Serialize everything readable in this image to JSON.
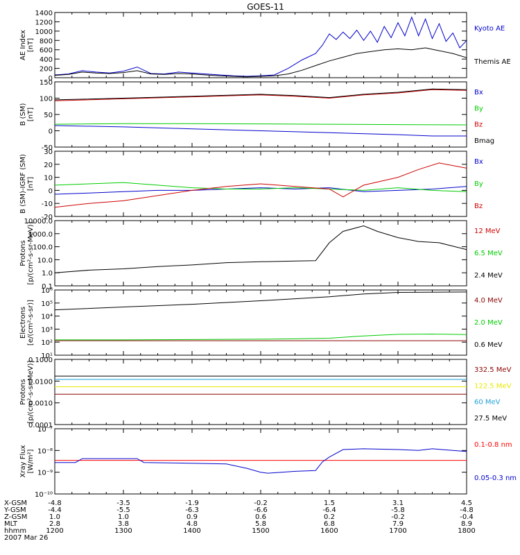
{
  "title": "GOES-11",
  "chart_data": [
    {
      "type": "line",
      "ylabel": [
        "AE Index",
        "[nT]"
      ],
      "ylim": [
        0,
        1400
      ],
      "yticks": [
        {
          "v": 0,
          "label": "0"
        },
        {
          "v": 200,
          "label": "200"
        },
        {
          "v": 400,
          "label": "400"
        },
        {
          "v": 600,
          "label": "600"
        },
        {
          "v": 800,
          "label": "800"
        },
        {
          "v": 1000,
          "label": "1000"
        },
        {
          "v": 1200,
          "label": "1200"
        },
        {
          "v": 1400,
          "label": "1400"
        }
      ],
      "series": [
        {
          "name": "Kyoto AE",
          "color": "#0000cc",
          "x": [
            12.0,
            12.2,
            12.4,
            12.6,
            12.8,
            13.0,
            13.2,
            13.4,
            13.6,
            13.8,
            14.0,
            14.2,
            14.4,
            14.6,
            14.8,
            15.0,
            15.2,
            15.4,
            15.6,
            15.8,
            15.9,
            16.0,
            16.1,
            16.2,
            16.3,
            16.4,
            16.5,
            16.6,
            16.7,
            16.8,
            16.9,
            17.0,
            17.1,
            17.2,
            17.3,
            17.4,
            17.5,
            17.6,
            17.7,
            17.8,
            17.9,
            18.0
          ],
          "y": [
            60,
            80,
            150,
            120,
            100,
            140,
            230,
            90,
            80,
            120,
            100,
            80,
            60,
            40,
            30,
            40,
            60,
            200,
            380,
            520,
            700,
            940,
            820,
            980,
            840,
            1020,
            800,
            1000,
            760,
            1100,
            860,
            1180,
            900,
            1300,
            900,
            1260,
            840,
            1160,
            780,
            960,
            640,
            800
          ]
        },
        {
          "name": "Themis AE",
          "color": "#000000",
          "x": [
            12.0,
            12.2,
            12.4,
            12.6,
            12.8,
            13.0,
            13.2,
            13.4,
            13.6,
            13.8,
            14.0,
            14.2,
            14.4,
            14.6,
            14.8,
            15.0,
            15.2,
            15.4,
            15.6,
            15.8,
            16.0,
            16.2,
            16.4,
            16.6,
            16.8,
            17.0,
            17.2,
            17.4,
            17.6,
            17.8,
            18.0
          ],
          "y": [
            50,
            70,
            120,
            100,
            90,
            110,
            150,
            80,
            70,
            90,
            80,
            60,
            40,
            30,
            20,
            30,
            40,
            80,
            160,
            260,
            360,
            440,
            520,
            560,
            600,
            620,
            600,
            640,
            580,
            520,
            430
          ]
        }
      ],
      "legend": [
        {
          "text": "Kyoto AE",
          "color": "#0000cc"
        },
        {
          "text": "Themis AE",
          "color": "#000000"
        }
      ]
    },
    {
      "type": "line",
      "ylabel": [
        "B (SM)",
        "[nT]"
      ],
      "ylim": [
        -50,
        150
      ],
      "yticks": [
        {
          "v": -50,
          "label": "-50"
        },
        {
          "v": 0,
          "label": "0"
        },
        {
          "v": 50,
          "label": "50"
        },
        {
          "v": 100,
          "label": "100"
        },
        {
          "v": 150,
          "label": "150"
        }
      ],
      "series": [
        {
          "name": "Bx",
          "color": "#0000cc",
          "x": [
            12,
            13,
            14,
            15,
            16,
            17,
            17.5,
            18
          ],
          "y": [
            16,
            12,
            6,
            0,
            -6,
            -12,
            -16,
            -16
          ]
        },
        {
          "name": "By",
          "color": "#00cc00",
          "x": [
            12,
            13,
            14,
            15,
            16,
            17,
            18
          ],
          "y": [
            20,
            22,
            22,
            21,
            20,
            19,
            18
          ]
        },
        {
          "name": "Bz",
          "color": "#cc0000",
          "x": [
            12,
            13,
            14,
            15,
            15.5,
            16,
            16.5,
            17,
            17.5,
            18
          ],
          "y": [
            92,
            98,
            104,
            110,
            106,
            100,
            110,
            116,
            126,
            124
          ]
        },
        {
          "name": "Bmag",
          "color": "#000000",
          "x": [
            12,
            13,
            14,
            15,
            15.5,
            16,
            16.5,
            17,
            17.5,
            18
          ],
          "y": [
            95,
            100,
            106,
            112,
            108,
            102,
            112,
            118,
            128,
            126
          ]
        }
      ],
      "legend": [
        {
          "text": "Bx",
          "color": "#0000cc"
        },
        {
          "text": "By",
          "color": "#00cc00"
        },
        {
          "text": "Bz",
          "color": "#cc0000"
        },
        {
          "text": "Bmag",
          "color": "#000000"
        }
      ]
    },
    {
      "type": "line",
      "ylabel": [
        "B (SM)-IGRF (SM)",
        "[nT]"
      ],
      "ylim": [
        -20,
        30
      ],
      "yticks": [
        {
          "v": -20,
          "label": "-20"
        },
        {
          "v": -10,
          "label": "-10"
        },
        {
          "v": 0,
          "label": "0"
        },
        {
          "v": 10,
          "label": "10"
        },
        {
          "v": 20,
          "label": "20"
        },
        {
          "v": 30,
          "label": "30"
        }
      ],
      "series": [
        {
          "name": "Bx",
          "color": "#0000cc",
          "x": [
            12,
            12.5,
            13,
            13.5,
            14,
            14.5,
            15,
            15.5,
            16,
            16.5,
            17,
            17.5,
            18
          ],
          "y": [
            -3,
            -2,
            -1,
            0,
            0,
            1,
            2,
            1,
            2,
            -1,
            0,
            1,
            3
          ]
        },
        {
          "name": "By",
          "color": "#00cc00",
          "x": [
            12,
            12.5,
            13,
            13.5,
            14,
            14.5,
            15,
            15.5,
            16,
            16.5,
            17,
            17.5,
            18
          ],
          "y": [
            4,
            5,
            6,
            4,
            2,
            1,
            1,
            2,
            1,
            0,
            2,
            0,
            -1
          ]
        },
        {
          "name": "Bz",
          "color": "#cc0000",
          "x": [
            12,
            12.5,
            13,
            13.5,
            14,
            14.5,
            15,
            15.5,
            16,
            16.2,
            16.5,
            17,
            17.3,
            17.6,
            18
          ],
          "y": [
            -13,
            -10,
            -8,
            -4,
            0,
            3,
            5,
            3,
            1,
            -5,
            4,
            10,
            16,
            21,
            17
          ]
        }
      ],
      "legend": [
        {
          "text": "Bx",
          "color": "#0000cc"
        },
        {
          "text": "By",
          "color": "#00cc00"
        },
        {
          "text": "Bz",
          "color": "#cc0000"
        }
      ]
    },
    {
      "type": "line",
      "ylabel": [
        "Protons",
        "[p/(cm²-s-sr-MeV)]"
      ],
      "log": true,
      "ylim": [
        0.1,
        10000
      ],
      "yticks": [
        {
          "v": 0.1,
          "label": "0.1"
        },
        {
          "v": 1,
          "label": "1.0"
        },
        {
          "v": 10,
          "label": "10.0"
        },
        {
          "v": 100,
          "label": "100.0"
        },
        {
          "v": 1000,
          "label": "1000.0"
        },
        {
          "v": 10000,
          "label": "10000.0"
        }
      ],
      "series": [
        {
          "name": "2.4 MeV",
          "color": "#000000",
          "x": [
            12.0,
            12.5,
            13.0,
            13.5,
            14.0,
            14.5,
            15.0,
            15.5,
            15.8,
            16.0,
            16.2,
            16.5,
            16.7,
            17.0,
            17.3,
            17.6,
            18.0
          ],
          "y": [
            1.0,
            1.6,
            2.0,
            3.0,
            4.0,
            6.0,
            7.0,
            8.0,
            8.5,
            200,
            1500,
            4000,
            1500,
            500,
            250,
            200,
            60
          ]
        }
      ],
      "legend": [
        {
          "text": "12 MeV",
          "color": "#cc0000"
        },
        {
          "text": "6.5 MeV",
          "color": "#00cc00"
        },
        {
          "text": "2.4 MeV",
          "color": "#000000"
        }
      ]
    },
    {
      "type": "line",
      "ylabel": [
        "Electrons",
        "[e/(cm²-s-sr)]"
      ],
      "log": true,
      "ylim": [
        10,
        1000000
      ],
      "yticks": [
        {
          "v": 10,
          "label": "10¹"
        },
        {
          "v": 100,
          "label": "10²"
        },
        {
          "v": 1000,
          "label": "10³"
        },
        {
          "v": 10000,
          "label": "10⁴"
        },
        {
          "v": 100000,
          "label": "10⁵"
        },
        {
          "v": 1000000,
          "label": "10⁶"
        }
      ],
      "series": [
        {
          "name": "0.6 MeV",
          "color": "#000000",
          "x": [
            12,
            13,
            14,
            15,
            16,
            16.5,
            17,
            18
          ],
          "y": [
            30000,
            50000,
            80000,
            150000,
            300000,
            500000,
            650000,
            700000
          ]
        },
        {
          "name": "2.0 MeV",
          "color": "#00cc00",
          "x": [
            12,
            13,
            14,
            15,
            15.5,
            16,
            16.5,
            17,
            17.5,
            18
          ],
          "y": [
            150,
            150,
            160,
            170,
            180,
            200,
            300,
            400,
            420,
            380
          ]
        },
        {
          "name": "4.0 MeV",
          "color": "#8b0000",
          "x": [
            12,
            13,
            14,
            15,
            16,
            17,
            18
          ],
          "y": [
            130,
            130,
            130,
            130,
            130,
            130,
            130
          ]
        }
      ],
      "legend": [
        {
          "text": "4.0 MeV",
          "color": "#8b0000"
        },
        {
          "text": "2.0 MeV",
          "color": "#00cc00"
        },
        {
          "text": "0.6 MeV",
          "color": "#000000"
        }
      ]
    },
    {
      "type": "line",
      "ylabel": [
        "Protons",
        "[p/(cm²-s-sr-MeV)]"
      ],
      "log": true,
      "ylim": [
        0.0001,
        0.1
      ],
      "yticks": [
        {
          "v": 0.0001,
          "label": "0.0001"
        },
        {
          "v": 0.001,
          "label": "0.0010"
        },
        {
          "v": 0.01,
          "label": "0.0100"
        },
        {
          "v": 0.1,
          "label": "0.1000"
        }
      ],
      "series": [
        {
          "name": "27.5 MeV",
          "color": "#000000",
          "x": [
            12,
            18
          ],
          "y": [
            0.017,
            0.017
          ]
        },
        {
          "name": "60 MeV",
          "color": "#1e9fd8",
          "x": [
            12,
            18
          ],
          "y": [
            0.012,
            0.012
          ]
        },
        {
          "name": "122.5 MeV",
          "color": "#e8e800",
          "x": [
            12,
            18
          ],
          "y": [
            0.0055,
            0.0055
          ]
        },
        {
          "name": "332.5 MeV",
          "color": "#8b0000",
          "x": [
            12,
            18
          ],
          "y": [
            0.0025,
            0.0025
          ]
        }
      ],
      "legend": [
        {
          "text": "332.5 MeV",
          "color": "#8b0000"
        },
        {
          "text": "122.5 MeV",
          "color": "#e8e800"
        },
        {
          "text": "60 MeV",
          "color": "#1e9fd8"
        },
        {
          "text": "27.5 MeV",
          "color": "#000000"
        }
      ]
    },
    {
      "type": "line",
      "ylabel": [
        "Xray Flux",
        "[W/m²]"
      ],
      "log": true,
      "ylim": [
        1e-10,
        1e-07
      ],
      "yticks": [
        {
          "v": 1e-10,
          "label": "10⁻¹⁰"
        },
        {
          "v": 1e-09,
          "label": "10⁻⁹"
        },
        {
          "v": 1e-08,
          "label": "10⁻⁸"
        },
        {
          "v": 1e-07,
          "label": "10⁻⁷"
        }
      ],
      "series": [
        {
          "name": "0.1-0.8 nm",
          "color": "#ff0000",
          "x": [
            12,
            18
          ],
          "y": [
            3.5e-09,
            3.5e-09
          ]
        },
        {
          "name": "0.05-0.3 nm",
          "color": "#0000cc",
          "x": [
            12.0,
            12.3,
            12.4,
            13.2,
            13.3,
            14.0,
            14.5,
            14.8,
            15.0,
            15.1,
            15.3,
            15.5,
            15.8,
            15.9,
            16.0,
            16.2,
            16.5,
            17.0,
            17.3,
            17.5,
            17.8,
            18.0
          ],
          "y": [
            2.8e-09,
            2.8e-09,
            4.2e-09,
            4.2e-09,
            2.8e-09,
            2.6e-09,
            2.4e-09,
            1.5e-09,
            1e-09,
            9e-10,
            1e-09,
            1.1e-09,
            1.2e-09,
            3e-09,
            5e-09,
            1.1e-08,
            1.2e-08,
            1.1e-08,
            1e-08,
            1.2e-08,
            1e-08,
            9e-09
          ]
        }
      ],
      "legend": [
        {
          "text": "0.1-0.8 nm",
          "color": "#ff0000"
        },
        {
          "text": "0.05-0.3 nm",
          "color": "#0000cc"
        }
      ]
    }
  ],
  "ephemeris": {
    "row_labels": [
      "X-GSM",
      "Y-GSM",
      "Z-GSM",
      "MLT",
      "hhmm"
    ],
    "date": "2007 Mar 26",
    "ticks": [
      12,
      13,
      14,
      15,
      16,
      17,
      18
    ],
    "columns": [
      [
        "-4.8",
        "-4.4",
        "1.0",
        "2.8",
        "1200"
      ],
      [
        "-3.5",
        "-5.5",
        "1.0",
        "3.8",
        "1300"
      ],
      [
        "-1.9",
        "-6.3",
        "0.9",
        "4.8",
        "1400"
      ],
      [
        "-0.2",
        "-6.6",
        "0.6",
        "5.8",
        "1500"
      ],
      [
        "1.5",
        "-6.4",
        "0.2",
        "6.8",
        "1600"
      ],
      [
        "3.1",
        "-5.8",
        "-0.2",
        "7.9",
        "1700"
      ],
      [
        "4.5",
        "-4.8",
        "-0.4",
        "8.9",
        "1800"
      ]
    ]
  }
}
